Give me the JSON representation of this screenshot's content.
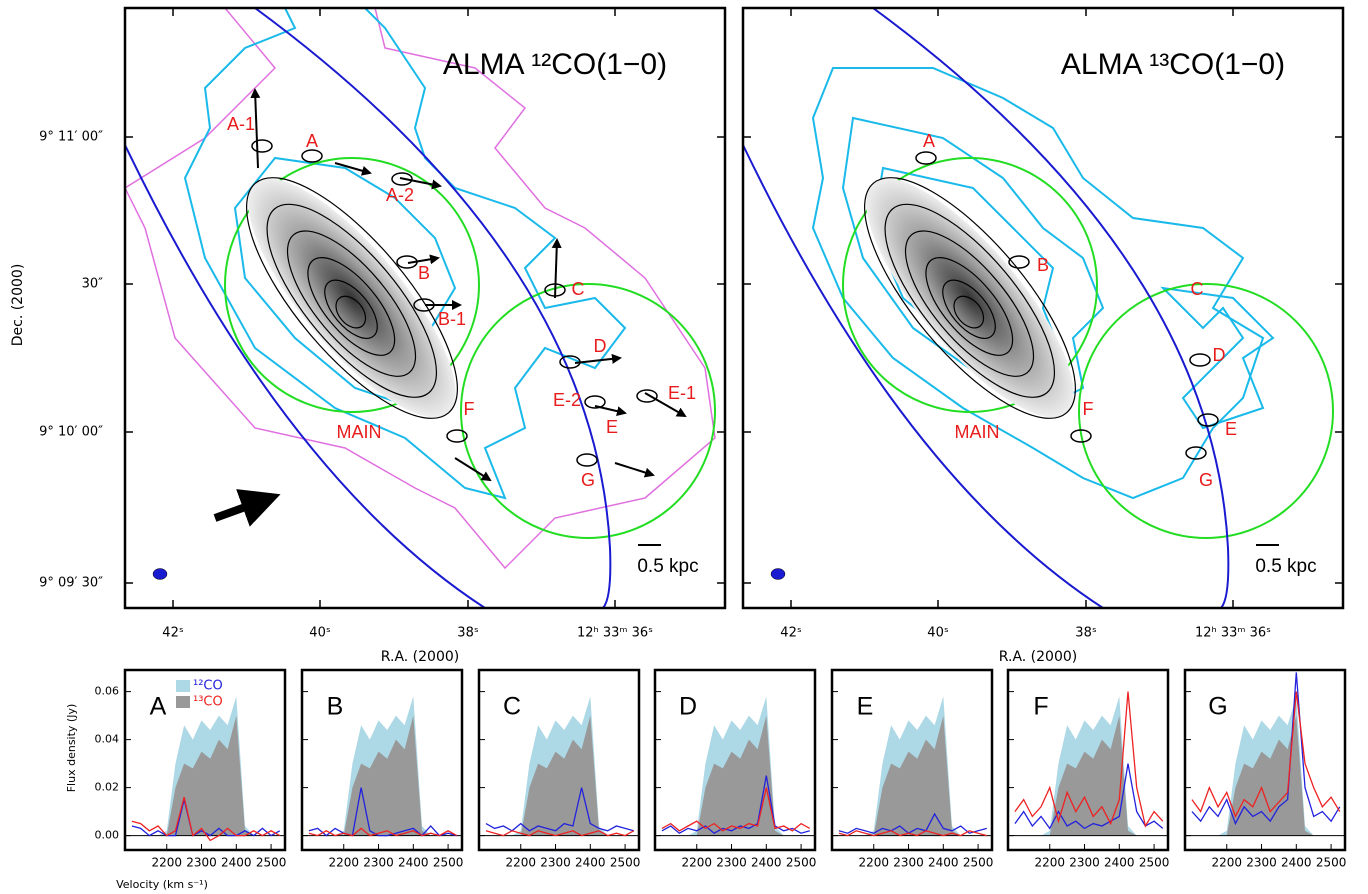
{
  "maps": [
    {
      "title": "ALMA ¹²CO(1−0)",
      "xlabel": "R.A. (2000)",
      "ylabel": "Dec. (2000)",
      "yticks": [
        "9° 11′ 00″",
        "30″",
        "9° 10′ 00″",
        "9° 09′ 30″"
      ],
      "xticks": [
        "42ˢ",
        "40ˢ",
        "38ˢ",
        "12ʰ 33ᵐ 36ˢ"
      ],
      "regions": [
        "A-1",
        "A",
        "A-2",
        "B",
        "B-1",
        "C",
        "D",
        "E-2",
        "E",
        "E-1",
        "F",
        "G",
        "MAIN"
      ],
      "scalebar": "0.5 kpc"
    },
    {
      "title": "ALMA ¹³CO(1−0)",
      "xlabel": "R.A. (2000)",
      "xticks": [
        "42ˢ",
        "40ˢ",
        "38ˢ",
        "12ʰ 33ᵐ 36ˢ"
      ],
      "regions": [
        "A",
        "B",
        "C",
        "D",
        "E",
        "F",
        "G",
        "MAIN"
      ],
      "scalebar": "0.5 kpc"
    }
  ],
  "spectra": {
    "ylabel": "Flux density (Jy)",
    "xlabel": "Velocity (km s⁻¹)",
    "xlim": [
      2080,
      2540
    ],
    "ylim": [
      -0.006,
      0.069
    ],
    "xticks": [
      2200,
      2300,
      2400,
      2500
    ],
    "yticks": [
      {
        "value": 0,
        "label": "0.00"
      },
      {
        "value": 0.02,
        "label": "0.02"
      },
      {
        "value": 0.04,
        "label": "0.04"
      },
      {
        "value": 0.06,
        "label": "0.06"
      }
    ],
    "x": [
      2100,
      2125,
      2150,
      2175,
      2200,
      2225,
      2250,
      2275,
      2300,
      2325,
      2350,
      2375,
      2400,
      2425,
      2450,
      2475,
      2500,
      2525
    ],
    "fills": [
      {
        "name": "¹²CO",
        "color": "#add8e6",
        "values": [
          0,
          0,
          0,
          0,
          0.002,
          0.03,
          0.046,
          0.04,
          0.048,
          0.044,
          0.05,
          0.046,
          0.058,
          0.004,
          0,
          0,
          0,
          0
        ]
      },
      {
        "name": "¹³CO",
        "color": "#999999",
        "values": [
          0,
          0,
          0,
          0,
          0,
          0.02,
          0.03,
          0.028,
          0.035,
          0.032,
          0.04,
          0.036,
          0.05,
          0.002,
          0,
          0,
          0,
          0
        ]
      }
    ],
    "panels": [
      {
        "label": "A",
        "series": [
          {
            "color": "#2222dd",
            "values": [
              0.004,
              0.003,
              0,
              0.002,
              0,
              0,
              0.015,
              0,
              0.002,
              0,
              0.003,
              0,
              0,
              0.002,
              0,
              0.003,
              0,
              0.002
            ]
          },
          {
            "color": "#ee2222",
            "values": [
              0.006,
              0.005,
              0.002,
              0.004,
              0,
              0.002,
              0.016,
              0,
              0.003,
              -0.002,
              0,
              0.003,
              0,
              0,
              0.002,
              0,
              0.002,
              0
            ]
          }
        ]
      },
      {
        "label": "B",
        "series": [
          {
            "color": "#2222dd",
            "values": [
              0.002,
              0.003,
              0,
              0.003,
              0.001,
              0,
              0.02,
              0.002,
              0,
              0,
              0.001,
              0.002,
              0.003,
              0,
              0.004,
              0,
              0.001,
              0
            ]
          },
          {
            "color": "#ee2222",
            "values": [
              0.001,
              0,
              0.002,
              0,
              0.001,
              0,
              0.003,
              0,
              0.001,
              0.002,
              0,
              0.001,
              0.002,
              0,
              0.001,
              0,
              0.002,
              0
            ]
          }
        ]
      },
      {
        "label": "C",
        "series": [
          {
            "color": "#2222dd",
            "values": [
              0.005,
              0.003,
              0.004,
              0.002,
              0.005,
              0.002,
              0.004,
              0.003,
              0.002,
              0.005,
              0.004,
              0.02,
              0.005,
              0.003,
              0.002,
              0.004,
              0.003,
              0.002
            ]
          },
          {
            "color": "#ee2222",
            "values": [
              0.002,
              0.001,
              0,
              0.002,
              0.001,
              0,
              0.002,
              0.001,
              0,
              0.001,
              0.002,
              0,
              0.001,
              0.002,
              0,
              0.001,
              0,
              0.002
            ]
          }
        ]
      },
      {
        "label": "D",
        "series": [
          {
            "color": "#2222dd",
            "values": [
              0.002,
              0.004,
              0.001,
              0.003,
              0.002,
              0.004,
              0.001,
              0.003,
              0.002,
              0.004,
              0.003,
              0.005,
              0.025,
              0.004,
              0.002,
              0.003,
              0.001,
              0.002
            ]
          },
          {
            "color": "#ee2222",
            "values": [
              0.003,
              0.005,
              0.002,
              0.004,
              0.006,
              0.003,
              0.005,
              0.002,
              0.004,
              0.003,
              0.005,
              0.004,
              0.02,
              0.003,
              0.004,
              0.002,
              0.005,
              0.003
            ]
          }
        ]
      },
      {
        "label": "E",
        "series": [
          {
            "color": "#2222dd",
            "values": [
              0.002,
              0.001,
              0.003,
              0.002,
              0.001,
              0.003,
              0.002,
              0.004,
              0.001,
              0.003,
              0.002,
              0.009,
              0.003,
              0.002,
              0.004,
              0.001,
              0.002,
              0.003
            ]
          },
          {
            "color": "#ee2222",
            "values": [
              0.001,
              0,
              0.002,
              0.001,
              0,
              0.001,
              0.002,
              0,
              0.001,
              0,
              0.002,
              0.001,
              0,
              0.001,
              0,
              0.002,
              0.001,
              0
            ]
          }
        ]
      },
      {
        "label": "F",
        "series": [
          {
            "color": "#2222dd",
            "values": [
              0.005,
              0.01,
              0.004,
              0.008,
              0.003,
              0.01,
              0.004,
              0.006,
              0.003,
              0.005,
              0.004,
              0.006,
              0.008,
              0.03,
              0.01,
              0.004,
              0.006,
              0.003
            ]
          },
          {
            "color": "#ee2222",
            "values": [
              0.01,
              0.015,
              0.008,
              0.012,
              0.02,
              0.006,
              0.018,
              0.01,
              0.016,
              0.008,
              0.012,
              0.005,
              0.015,
              0.06,
              0.02,
              0.004,
              0.01,
              0.006
            ]
          }
        ]
      },
      {
        "label": "G",
        "series": [
          {
            "color": "#2222dd",
            "values": [
              0.01,
              0.006,
              0.012,
              0.008,
              0.015,
              0.005,
              0.012,
              0.008,
              0.01,
              0.006,
              0.012,
              0.015,
              0.068,
              0.02,
              0.008,
              0.01,
              0.006,
              0.012
            ]
          },
          {
            "color": "#ee2222",
            "values": [
              0.015,
              0.01,
              0.02,
              0.012,
              0.018,
              0.008,
              0.015,
              0.012,
              0.02,
              0.01,
              0.014,
              0.018,
              0.06,
              0.03,
              0.02,
              0.012,
              0.016,
              0.01
            ]
          }
        ]
      }
    ]
  }
}
